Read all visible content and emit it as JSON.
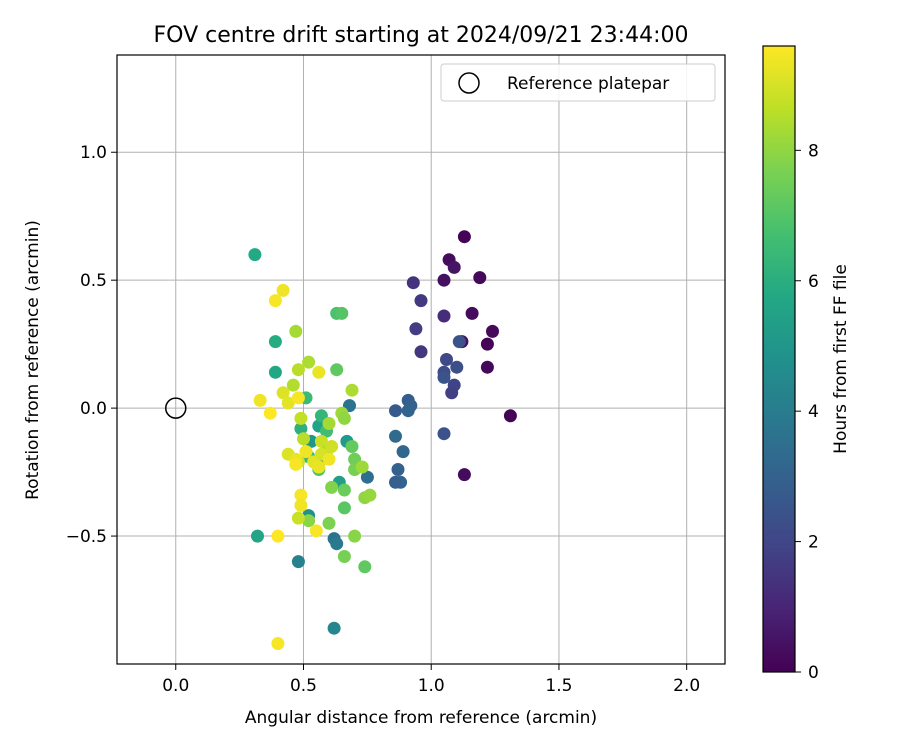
{
  "chart_data": {
    "type": "scatter",
    "title": "FOV centre drift starting at 2024/09/21 23:44:00",
    "xlabel": "Angular distance from reference (arcmin)",
    "ylabel": "Rotation from reference (arcmin)",
    "xlim": [
      -0.23,
      2.15
    ],
    "ylim": [
      -1.0,
      1.38
    ],
    "xticks": [
      0.0,
      0.5,
      1.0,
      1.5,
      2.0
    ],
    "xtick_labels": [
      "0.0",
      "0.5",
      "1.0",
      "1.5",
      "2.0"
    ],
    "yticks": [
      -0.5,
      0.0,
      0.5,
      1.0
    ],
    "ytick_labels": [
      "−0.5",
      "0.0",
      "0.5",
      "1.0"
    ],
    "grid": true,
    "legend": {
      "placement": "top-right",
      "entries": [
        {
          "label": "Reference platepar",
          "marker": "open-circle"
        }
      ]
    },
    "reference_point": {
      "x": 0.0,
      "y": 0.0
    },
    "colorbar": {
      "label": "Hours from first FF file",
      "min": 0,
      "max": 9.6,
      "ticks": [
        0,
        2,
        4,
        6,
        8
      ],
      "tick_labels": [
        "0",
        "2",
        "4",
        "6",
        "8"
      ],
      "colormap": "viridis"
    },
    "points": [
      {
        "x": 1.13,
        "y": 0.67,
        "c": 0.1
      },
      {
        "x": 1.07,
        "y": 0.58,
        "c": 0.3
      },
      {
        "x": 1.09,
        "y": 0.55,
        "c": 0.5
      },
      {
        "x": 1.19,
        "y": 0.51,
        "c": 0.2
      },
      {
        "x": 1.05,
        "y": 0.5,
        "c": 0.4
      },
      {
        "x": 1.16,
        "y": 0.37,
        "c": 0.3
      },
      {
        "x": 1.24,
        "y": 0.3,
        "c": 0.2
      },
      {
        "x": 1.22,
        "y": 0.25,
        "c": 0.1
      },
      {
        "x": 1.12,
        "y": 0.26,
        "c": 0.4
      },
      {
        "x": 1.22,
        "y": 0.16,
        "c": 0.2
      },
      {
        "x": 1.31,
        "y": -0.03,
        "c": 0.1
      },
      {
        "x": 1.13,
        "y": -0.26,
        "c": 0.3
      },
      {
        "x": 0.93,
        "y": 0.49,
        "c": 1.4
      },
      {
        "x": 0.96,
        "y": 0.42,
        "c": 1.6
      },
      {
        "x": 1.05,
        "y": 0.36,
        "c": 1.2
      },
      {
        "x": 0.94,
        "y": 0.31,
        "c": 1.7
      },
      {
        "x": 0.96,
        "y": 0.22,
        "c": 1.5
      },
      {
        "x": 1.11,
        "y": 0.26,
        "c": 2.4
      },
      {
        "x": 1.06,
        "y": 0.19,
        "c": 2.1
      },
      {
        "x": 1.1,
        "y": 0.16,
        "c": 2.3
      },
      {
        "x": 1.05,
        "y": 0.14,
        "c": 2.2
      },
      {
        "x": 1.05,
        "y": 0.12,
        "c": 2.5
      },
      {
        "x": 1.09,
        "y": 0.09,
        "c": 1.9
      },
      {
        "x": 1.08,
        "y": 0.06,
        "c": 1.8
      },
      {
        "x": 0.91,
        "y": 0.03,
        "c": 2.8
      },
      {
        "x": 0.92,
        "y": 0.01,
        "c": 3.0
      },
      {
        "x": 0.86,
        "y": -0.01,
        "c": 2.7
      },
      {
        "x": 0.91,
        "y": -0.01,
        "c": 3.1
      },
      {
        "x": 1.05,
        "y": -0.1,
        "c": 2.4
      },
      {
        "x": 0.86,
        "y": -0.11,
        "c": 3.3
      },
      {
        "x": 0.89,
        "y": -0.17,
        "c": 3.2
      },
      {
        "x": 0.87,
        "y": -0.24,
        "c": 3.0
      },
      {
        "x": 0.88,
        "y": -0.29,
        "c": 3.1
      },
      {
        "x": 0.86,
        "y": -0.29,
        "c": 2.9
      },
      {
        "x": 0.68,
        "y": 0.01,
        "c": 3.6
      },
      {
        "x": 0.75,
        "y": -0.27,
        "c": 3.5
      },
      {
        "x": 0.62,
        "y": -0.51,
        "c": 3.7
      },
      {
        "x": 0.63,
        "y": -0.53,
        "c": 3.9
      },
      {
        "x": 0.48,
        "y": -0.6,
        "c": 4.2
      },
      {
        "x": 0.62,
        "y": -0.86,
        "c": 4.4
      },
      {
        "x": 0.57,
        "y": -0.2,
        "c": 4.5
      },
      {
        "x": 0.52,
        "y": -0.42,
        "c": 4.8
      },
      {
        "x": 0.31,
        "y": 0.6,
        "c": 5.8
      },
      {
        "x": 0.39,
        "y": 0.26,
        "c": 5.9
      },
      {
        "x": 0.39,
        "y": 0.14,
        "c": 5.7
      },
      {
        "x": 0.32,
        "y": -0.5,
        "c": 5.6
      },
      {
        "x": 0.67,
        "y": -0.13,
        "c": 5.2
      },
      {
        "x": 0.64,
        "y": -0.29,
        "c": 5.4
      },
      {
        "x": 0.53,
        "y": -0.13,
        "c": 5.0
      },
      {
        "x": 0.56,
        "y": -0.07,
        "c": 5.5
      },
      {
        "x": 0.63,
        "y": 0.37,
        "c": 6.8
      },
      {
        "x": 0.65,
        "y": 0.37,
        "c": 7.0
      },
      {
        "x": 0.63,
        "y": 0.15,
        "c": 7.2
      },
      {
        "x": 0.51,
        "y": 0.04,
        "c": 6.5
      },
      {
        "x": 0.57,
        "y": -0.03,
        "c": 6.3
      },
      {
        "x": 0.49,
        "y": -0.08,
        "c": 6.1
      },
      {
        "x": 0.59,
        "y": -0.09,
        "c": 6.6
      },
      {
        "x": 0.52,
        "y": -0.19,
        "c": 6.4
      },
      {
        "x": 0.56,
        "y": -0.24,
        "c": 6.9
      },
      {
        "x": 0.69,
        "y": -0.15,
        "c": 7.3
      },
      {
        "x": 0.7,
        "y": -0.2,
        "c": 7.5
      },
      {
        "x": 0.7,
        "y": -0.24,
        "c": 7.6
      },
      {
        "x": 0.66,
        "y": -0.32,
        "c": 7.4
      },
      {
        "x": 0.61,
        "y": -0.31,
        "c": 7.8
      },
      {
        "x": 0.66,
        "y": -0.39,
        "c": 7.1
      },
      {
        "x": 0.6,
        "y": -0.45,
        "c": 7.7
      },
      {
        "x": 0.7,
        "y": -0.5,
        "c": 7.9
      },
      {
        "x": 0.74,
        "y": -0.35,
        "c": 8.0
      },
      {
        "x": 0.76,
        "y": -0.34,
        "c": 8.1
      },
      {
        "x": 0.73,
        "y": -0.23,
        "c": 8.2
      },
      {
        "x": 0.74,
        "y": -0.62,
        "c": 7.2
      },
      {
        "x": 0.66,
        "y": -0.58,
        "c": 7.6
      },
      {
        "x": 0.52,
        "y": -0.44,
        "c": 7.9
      },
      {
        "x": 0.47,
        "y": 0.3,
        "c": 8.3
      },
      {
        "x": 0.52,
        "y": 0.18,
        "c": 8.4
      },
      {
        "x": 0.48,
        "y": 0.15,
        "c": 8.6
      },
      {
        "x": 0.46,
        "y": 0.09,
        "c": 8.5
      },
      {
        "x": 0.69,
        "y": 0.07,
        "c": 8.4
      },
      {
        "x": 0.65,
        "y": -0.02,
        "c": 8.2
      },
      {
        "x": 0.66,
        "y": -0.04,
        "c": 8.0
      },
      {
        "x": 0.6,
        "y": -0.06,
        "c": 8.3
      },
      {
        "x": 0.49,
        "y": -0.04,
        "c": 8.7
      },
      {
        "x": 0.5,
        "y": -0.12,
        "c": 8.6
      },
      {
        "x": 0.57,
        "y": -0.13,
        "c": 8.8
      },
      {
        "x": 0.59,
        "y": -0.17,
        "c": 8.5
      },
      {
        "x": 0.61,
        "y": -0.15,
        "c": 8.9
      },
      {
        "x": 0.48,
        "y": -0.43,
        "c": 8.8
      },
      {
        "x": 0.48,
        "y": -0.21,
        "c": 8.9
      },
      {
        "x": 0.42,
        "y": 0.46,
        "c": 9.4
      },
      {
        "x": 0.39,
        "y": 0.42,
        "c": 9.5
      },
      {
        "x": 0.56,
        "y": 0.14,
        "c": 9.3
      },
      {
        "x": 0.42,
        "y": 0.06,
        "c": 9.1
      },
      {
        "x": 0.44,
        "y": 0.02,
        "c": 9.2
      },
      {
        "x": 0.33,
        "y": 0.03,
        "c": 9.4
      },
      {
        "x": 0.48,
        "y": 0.04,
        "c": 9.5
      },
      {
        "x": 0.37,
        "y": -0.02,
        "c": 9.6
      },
      {
        "x": 0.44,
        "y": -0.18,
        "c": 9.1
      },
      {
        "x": 0.47,
        "y": -0.2,
        "c": 9.3
      },
      {
        "x": 0.51,
        "y": -0.17,
        "c": 9.4
      },
      {
        "x": 0.54,
        "y": -0.21,
        "c": 9.2
      },
      {
        "x": 0.47,
        "y": -0.22,
        "c": 9.5
      },
      {
        "x": 0.57,
        "y": -0.18,
        "c": 9.0
      },
      {
        "x": 0.56,
        "y": -0.23,
        "c": 9.3
      },
      {
        "x": 0.6,
        "y": -0.2,
        "c": 9.4
      },
      {
        "x": 0.49,
        "y": -0.34,
        "c": 9.5
      },
      {
        "x": 0.49,
        "y": -0.38,
        "c": 9.4
      },
      {
        "x": 0.55,
        "y": -0.48,
        "c": 9.5
      },
      {
        "x": 0.4,
        "y": -0.5,
        "c": 9.6
      },
      {
        "x": 0.4,
        "y": -0.92,
        "c": 9.5
      }
    ]
  }
}
